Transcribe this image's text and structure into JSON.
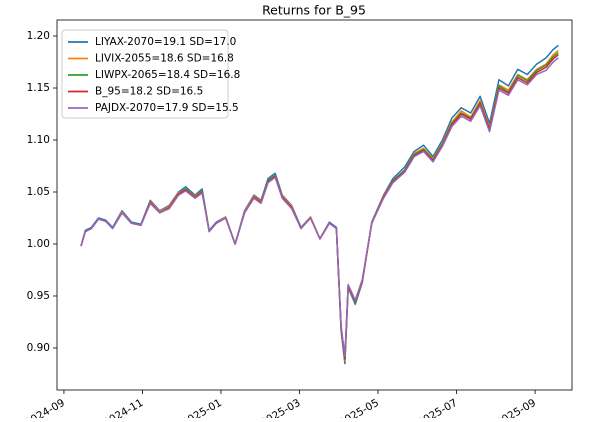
{
  "chart_data": {
    "type": "line",
    "title": "Returns for B_95",
    "x": [
      2024.703,
      2024.712,
      2024.725,
      2024.74,
      2024.755,
      2024.77,
      2024.79,
      2024.81,
      2024.83,
      2024.85,
      2024.87,
      2024.89,
      2024.91,
      2024.925,
      2024.945,
      2024.96,
      2024.975,
      2024.99,
      2025.01,
      2025.03,
      2025.05,
      2025.07,
      2025.085,
      2025.1,
      2025.115,
      2025.13,
      2025.15,
      2025.17,
      2025.19,
      2025.21,
      2025.23,
      2025.245,
      2025.255,
      2025.263,
      2025.27,
      2025.285,
      2025.3,
      2025.32,
      2025.345,
      2025.365,
      2025.39,
      2025.41,
      2025.43,
      2025.45,
      2025.47,
      2025.49,
      2025.51,
      2025.53,
      2025.55,
      2025.57,
      2025.59,
      2025.61,
      2025.63,
      2025.65,
      2025.67,
      2025.69,
      2025.705,
      2025.716
    ],
    "series": [
      {
        "name": "LIYAX-2070=19.1 SD=17.0",
        "color": "#1f77b4",
        "values": [
          0.998,
          1.013,
          1.016,
          1.025,
          1.023,
          1.016,
          1.032,
          1.021,
          1.019,
          1.042,
          1.032,
          1.037,
          1.05,
          1.055,
          1.047,
          1.053,
          1.013,
          1.021,
          1.026,
          1.0,
          1.032,
          1.047,
          1.042,
          1.063,
          1.068,
          1.047,
          1.037,
          1.016,
          1.026,
          1.005,
          1.021,
          1.016,
          0.916,
          0.885,
          0.958,
          0.942,
          0.963,
          1.021,
          1.047,
          1.063,
          1.074,
          1.089,
          1.095,
          1.084,
          1.1,
          1.121,
          1.131,
          1.126,
          1.142,
          1.116,
          1.158,
          1.152,
          1.168,
          1.163,
          1.173,
          1.179,
          1.187,
          1.191
        ]
      },
      {
        "name": "LIVIX-2055=18.6 SD=16.8",
        "color": "#ff7f0e",
        "values": [
          0.998,
          1.012,
          1.015,
          1.024,
          1.022,
          1.015,
          1.031,
          1.02,
          1.018,
          1.041,
          1.031,
          1.036,
          1.049,
          1.053,
          1.046,
          1.051,
          1.012,
          1.02,
          1.026,
          1.0,
          1.031,
          1.046,
          1.041,
          1.061,
          1.066,
          1.046,
          1.036,
          1.015,
          1.026,
          1.005,
          1.02,
          1.015,
          0.918,
          0.888,
          0.959,
          0.944,
          0.964,
          1.02,
          1.046,
          1.061,
          1.071,
          1.087,
          1.092,
          1.082,
          1.097,
          1.117,
          1.128,
          1.122,
          1.138,
          1.112,
          1.153,
          1.148,
          1.163,
          1.158,
          1.168,
          1.173,
          1.182,
          1.186
        ]
      },
      {
        "name": "LIWPX-2065=18.4 SD=16.8",
        "color": "#2ca02c",
        "values": [
          0.998,
          1.012,
          1.015,
          1.024,
          1.022,
          1.015,
          1.03,
          1.02,
          1.018,
          1.04,
          1.03,
          1.035,
          1.048,
          1.053,
          1.045,
          1.051,
          1.012,
          1.02,
          1.025,
          1.0,
          1.03,
          1.045,
          1.04,
          1.061,
          1.066,
          1.045,
          1.035,
          1.015,
          1.025,
          1.005,
          1.02,
          1.015,
          0.919,
          0.889,
          0.96,
          0.944,
          0.965,
          1.02,
          1.045,
          1.061,
          1.071,
          1.086,
          1.091,
          1.081,
          1.096,
          1.116,
          1.126,
          1.121,
          1.136,
          1.111,
          1.152,
          1.146,
          1.162,
          1.157,
          1.167,
          1.172,
          1.18,
          1.184
        ]
      },
      {
        "name": "B_95=18.2 SD=16.5",
        "color": "#d62728",
        "values": [
          0.998,
          1.012,
          1.015,
          1.024,
          1.022,
          1.015,
          1.03,
          1.02,
          1.018,
          1.04,
          1.03,
          1.035,
          1.048,
          1.052,
          1.045,
          1.05,
          1.012,
          1.02,
          1.025,
          1.0,
          1.03,
          1.045,
          1.04,
          1.06,
          1.065,
          1.045,
          1.035,
          1.015,
          1.025,
          1.005,
          1.02,
          1.015,
          0.92,
          0.89,
          0.96,
          0.945,
          0.965,
          1.02,
          1.045,
          1.06,
          1.07,
          1.085,
          1.09,
          1.08,
          1.095,
          1.115,
          1.125,
          1.12,
          1.135,
          1.11,
          1.15,
          1.145,
          1.16,
          1.155,
          1.165,
          1.17,
          1.178,
          1.182
        ]
      },
      {
        "name": "PAJDX-2070=17.9 SD=15.5",
        "color": "#9467bd",
        "values": [
          0.998,
          1.012,
          1.015,
          1.024,
          1.022,
          1.015,
          1.03,
          1.02,
          1.018,
          1.039,
          1.03,
          1.034,
          1.047,
          1.051,
          1.044,
          1.049,
          1.012,
          1.02,
          1.025,
          1.0,
          1.03,
          1.044,
          1.039,
          1.059,
          1.064,
          1.044,
          1.034,
          1.015,
          1.025,
          1.005,
          1.02,
          1.015,
          0.921,
          0.892,
          0.961,
          0.946,
          0.966,
          1.02,
          1.044,
          1.059,
          1.069,
          1.084,
          1.089,
          1.079,
          1.094,
          1.113,
          1.123,
          1.118,
          1.133,
          1.108,
          1.148,
          1.143,
          1.158,
          1.153,
          1.163,
          1.167,
          1.175,
          1.179
        ]
      }
    ],
    "xlim": [
      2024.652,
      2025.745
    ],
    "xticks": [
      {
        "value": 2024.6667,
        "label": "2024-09"
      },
      {
        "value": 2024.8333,
        "label": "2024-11"
      },
      {
        "value": 2025.0,
        "label": "2025-01"
      },
      {
        "value": 2025.1667,
        "label": "2025-03"
      },
      {
        "value": 2025.3333,
        "label": "2025-05"
      },
      {
        "value": 2025.5,
        "label": "2025-07"
      },
      {
        "value": 2025.6667,
        "label": "2025-09"
      }
    ],
    "ylim": [
      0.8596,
      1.2154
    ],
    "yticks": [
      {
        "value": 0.9,
        "label": "0.90"
      },
      {
        "value": 0.95,
        "label": "0.95"
      },
      {
        "value": 1.0,
        "label": "1.00"
      },
      {
        "value": 1.05,
        "label": "1.05"
      },
      {
        "value": 1.1,
        "label": "1.10"
      },
      {
        "value": 1.15,
        "label": "1.15"
      },
      {
        "value": 1.2,
        "label": "1.20"
      }
    ],
    "legend": "upper left"
  }
}
